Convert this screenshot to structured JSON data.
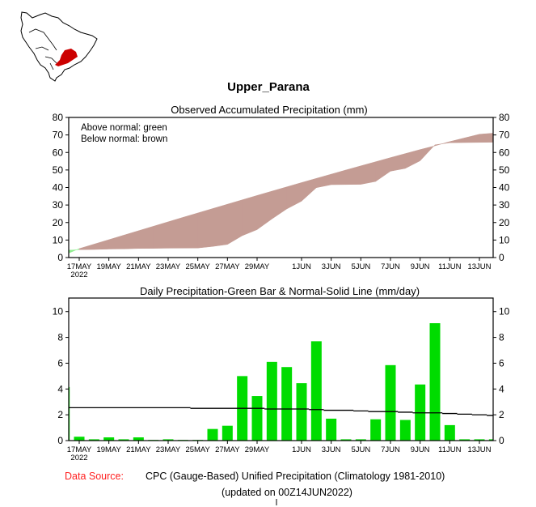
{
  "region_title": "Upper_Parana",
  "map": {
    "label": "South America locator map",
    "highlight_color": "#cc0000"
  },
  "source_label": "Data Source:",
  "source_text": "CPC (Gauge-Based) Unified Precipitation (Climatology 1981-2010)",
  "updated_text": "(updated on 00Z14JUN2022)",
  "colors": {
    "above": "#90ee90",
    "below": "#c49c94",
    "bar": "#00dc00",
    "source_label": "#ff2020"
  },
  "chart_data": [
    {
      "type": "area",
      "title": "Observed Accumulated Precipitation (mm)",
      "legend": [
        "Above normal: green",
        "Below normal: brown"
      ],
      "legend_position": "top-left",
      "ylim": [
        0,
        80
      ],
      "yticks": [
        0,
        10,
        20,
        30,
        40,
        50,
        60,
        70,
        80
      ],
      "xticks": [
        "17MAY",
        "19MAY",
        "21MAY",
        "23MAY",
        "25MAY",
        "27MAY",
        "29MAY",
        "1JUN",
        "3JUN",
        "5JUN",
        "7JUN",
        "9JUN",
        "11JUN",
        "13JUN"
      ],
      "xtick_year": "2022",
      "dates": [
        "16MAY",
        "17MAY",
        "18MAY",
        "19MAY",
        "20MAY",
        "21MAY",
        "22MAY",
        "23MAY",
        "24MAY",
        "25MAY",
        "26MAY",
        "27MAY",
        "28MAY",
        "29MAY",
        "30MAY",
        "31MAY",
        "1JUN",
        "2JUN",
        "3JUN",
        "4JUN",
        "5JUN",
        "6JUN",
        "7JUN",
        "8JUN",
        "9JUN",
        "10JUN",
        "11JUN",
        "12JUN",
        "13JUN",
        "14JUN"
      ],
      "series": [
        {
          "name": "Observed",
          "values": [
            4.2,
            4.5,
            4.6,
            4.85,
            4.95,
            5.2,
            5.25,
            5.35,
            5.4,
            5.45,
            6.35,
            7.5,
            12.5,
            15.95,
            22.05,
            27.75,
            32.2,
            39.9,
            41.6,
            41.7,
            41.8,
            43.45,
            49.3,
            50.9,
            55.25,
            64.35,
            65.55,
            65.65,
            65.75,
            65.85
          ]
        },
        {
          "name": "Normal",
          "values": [
            2.55,
            5.1,
            7.65,
            10.2,
            12.75,
            15.3,
            17.85,
            20.4,
            22.95,
            25.45,
            27.95,
            30.45,
            32.95,
            35.45,
            37.9,
            40.35,
            42.8,
            45.2,
            47.6,
            50.0,
            52.35,
            54.7,
            57.05,
            59.35,
            61.65,
            63.8,
            66.2,
            68.3,
            70.4,
            71.0
          ]
        }
      ]
    },
    {
      "type": "bar",
      "title": "Daily Precipitation-Green Bar & Normal-Solid Line (mm/day)",
      "ylim": [
        0,
        11
      ],
      "yticks": [
        0,
        2,
        4,
        6,
        8,
        10
      ],
      "xticks": [
        "17MAY",
        "19MAY",
        "21MAY",
        "23MAY",
        "25MAY",
        "27MAY",
        "29MAY",
        "1JUN",
        "3JUN",
        "5JUN",
        "7JUN",
        "9JUN",
        "11JUN",
        "13JUN"
      ],
      "xtick_year": "2022",
      "dates": [
        "16MAY",
        "17MAY",
        "18MAY",
        "19MAY",
        "20MAY",
        "21MAY",
        "22MAY",
        "23MAY",
        "24MAY",
        "25MAY",
        "26MAY",
        "27MAY",
        "28MAY",
        "29MAY",
        "30MAY",
        "31MAY",
        "1JUN",
        "2JUN",
        "3JUN",
        "4JUN",
        "5JUN",
        "6JUN",
        "7JUN",
        "8JUN",
        "9JUN",
        "10JUN",
        "11JUN",
        "12JUN",
        "13JUN",
        "14JUN"
      ],
      "series": [
        {
          "name": "Daily Precipitation",
          "values": [
            4.15,
            0.3,
            0.1,
            0.25,
            0.1,
            0.25,
            0.05,
            0.1,
            0.05,
            0.05,
            0.9,
            1.15,
            5.0,
            3.45,
            6.1,
            5.7,
            4.45,
            7.7,
            1.7,
            0.1,
            0.1,
            1.65,
            5.85,
            1.6,
            4.35,
            9.1,
            1.2,
            0.1,
            0.1,
            0.1
          ]
        },
        {
          "name": "Normal",
          "values": [
            2.55,
            2.55,
            2.55,
            2.55,
            2.55,
            2.55,
            2.55,
            2.55,
            2.55,
            2.5,
            2.5,
            2.5,
            2.5,
            2.5,
            2.45,
            2.45,
            2.45,
            2.4,
            2.35,
            2.35,
            2.3,
            2.25,
            2.25,
            2.2,
            2.15,
            2.15,
            2.1,
            2.05,
            2.0,
            1.95
          ]
        }
      ]
    }
  ]
}
